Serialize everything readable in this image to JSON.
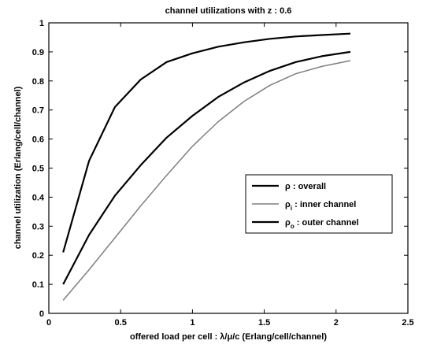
{
  "chart_data": {
    "type": "line",
    "title": "channel utilizations with z : 0.6",
    "xlabel": "offered load per cell : λ/μ/c (Erlang/cell/channel)",
    "ylabel": "channel utilization (Erlang/cell/channel)",
    "xlim": [
      0,
      2.5
    ],
    "ylim": [
      0,
      1
    ],
    "xticks": [
      0,
      0.5,
      1,
      1.5,
      2,
      2.5
    ],
    "xtick_labels": [
      "0",
      "0.5",
      "1",
      "1.5",
      "2",
      "2.5"
    ],
    "yticks": [
      0,
      0.1,
      0.2,
      0.3,
      0.4,
      0.5,
      0.6,
      0.7,
      0.8,
      0.9,
      1
    ],
    "ytick_labels": [
      "0",
      "0.1",
      "0.2",
      "0.3",
      "0.4",
      "0.5",
      "0.6",
      "0.7",
      "0.8",
      "0.9",
      "1"
    ],
    "grid": false,
    "legend_position": "center-right",
    "series": [
      {
        "name": "ρ : overall",
        "symbol": "ρ",
        "subscript": "",
        "label": ": overall",
        "color": "#000000",
        "x": [
          0.1,
          0.28,
          0.46,
          0.64,
          0.82,
          1.0,
          1.18,
          1.36,
          1.54,
          1.72,
          1.9,
          2.1
        ],
        "y": [
          0.21,
          0.525,
          0.71,
          0.805,
          0.865,
          0.895,
          0.918,
          0.933,
          0.945,
          0.953,
          0.958,
          0.963
        ]
      },
      {
        "name": "ρi : inner channel",
        "symbol": "ρ",
        "subscript": "i",
        "label": ": inner channel",
        "color": "#7f7f7f",
        "x": [
          0.1,
          0.28,
          0.46,
          0.64,
          0.82,
          1.0,
          1.18,
          1.36,
          1.54,
          1.72,
          1.9,
          2.1
        ],
        "y": [
          0.045,
          0.15,
          0.26,
          0.37,
          0.475,
          0.575,
          0.66,
          0.73,
          0.785,
          0.825,
          0.85,
          0.87
        ]
      },
      {
        "name": "ρo : outer channel",
        "symbol": "ρ",
        "subscript": "o",
        "label": ": outer channel",
        "color": "#000000",
        "x": [
          0.1,
          0.28,
          0.46,
          0.64,
          0.82,
          1.0,
          1.18,
          1.36,
          1.54,
          1.72,
          1.9,
          2.1
        ],
        "y": [
          0.1,
          0.27,
          0.405,
          0.51,
          0.605,
          0.68,
          0.745,
          0.795,
          0.835,
          0.865,
          0.885,
          0.9
        ]
      }
    ]
  }
}
